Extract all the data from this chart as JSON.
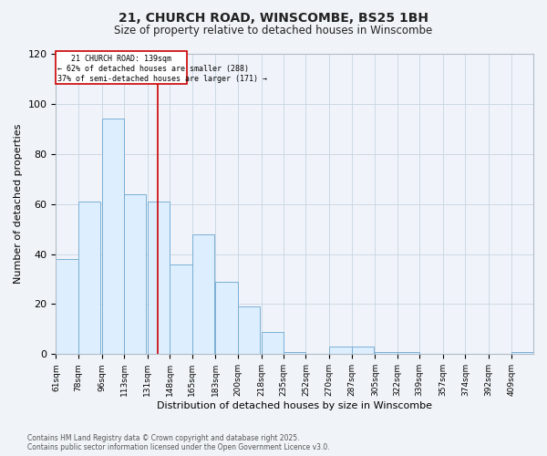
{
  "title_line1": "21, CHURCH ROAD, WINSCOMBE, BS25 1BH",
  "title_line2": "Size of property relative to detached houses in Winscombe",
  "xlabel": "Distribution of detached houses by size in Winscombe",
  "ylabel": "Number of detached properties",
  "bins": [
    61,
    78,
    96,
    113,
    131,
    148,
    165,
    183,
    200,
    218,
    235,
    252,
    270,
    287,
    305,
    322,
    339,
    357,
    374,
    392,
    409
  ],
  "values": [
    38,
    61,
    94,
    64,
    61,
    36,
    48,
    29,
    19,
    9,
    1,
    0,
    3,
    3,
    1,
    1,
    0,
    0,
    0,
    0,
    1
  ],
  "bar_color": "#ddeeff",
  "bar_edge_color": "#7bafd4",
  "vline_x": 139,
  "vline_color": "#cc0000",
  "annotation_box_color": "#cc0000",
  "annotation_text_line1": "21 CHURCH ROAD: 139sqm",
  "annotation_text_line2": "← 62% of detached houses are smaller (288)",
  "annotation_text_line3": "37% of semi-detached houses are larger (171) →",
  "ylim": [
    0,
    120
  ],
  "yticks": [
    0,
    20,
    40,
    60,
    80,
    100,
    120
  ],
  "footnote_line1": "Contains HM Land Registry data © Crown copyright and database right 2025.",
  "footnote_line2": "Contains public sector information licensed under the Open Government Licence v3.0.",
  "bg_color": "#f0f4f8",
  "plot_bg_color": "#f0f4fa",
  "grid_color": "#c8d4e0"
}
